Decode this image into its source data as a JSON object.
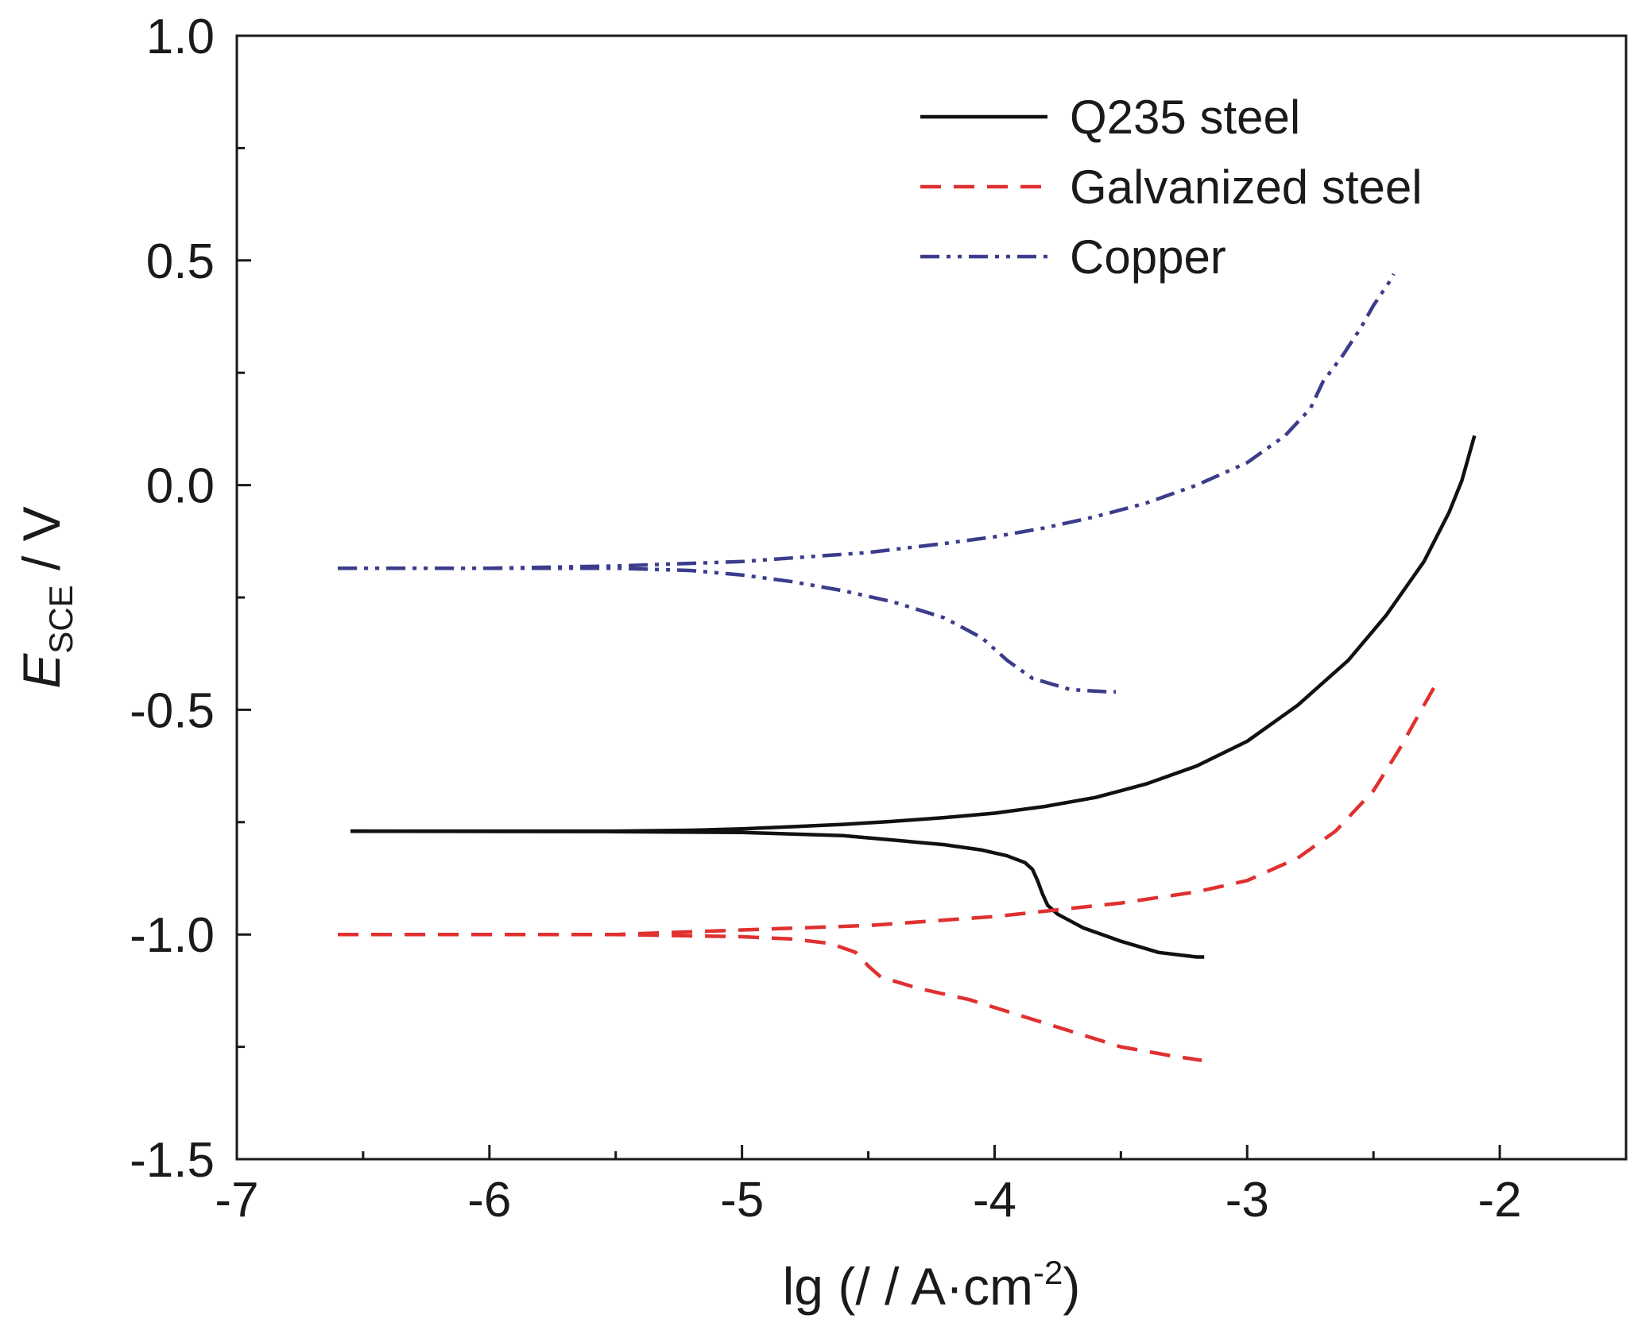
{
  "chart_data": {
    "type": "line",
    "xlabel": "lg (/ / A·cm-2)",
    "xlabel_parts": {
      "main": "lg (/ / A·cm",
      "sup": "-2",
      "close": ")"
    },
    "ylabel": "ESCE / V",
    "ylabel_parts": {
      "symbol": "E",
      "sub": "SCE",
      "unit": " / V"
    },
    "xlim": [
      -7,
      -1.5
    ],
    "ylim": [
      -1.5,
      1.0
    ],
    "x_ticks": [
      -7,
      -6,
      -5,
      -4,
      -3,
      -2
    ],
    "x_tick_labels": [
      "-7",
      "-6",
      "-5",
      "-4",
      "-3",
      "-2"
    ],
    "x_minor_ticks": [
      -6.5,
      -5.5,
      -4.5,
      -3.5,
      -2.5
    ],
    "y_ticks": [
      -1.5,
      -1.0,
      -0.5,
      0.0,
      0.5,
      1.0
    ],
    "y_tick_labels": [
      "-1.5",
      "-1.0",
      "-0.5",
      "0.0",
      "0.5",
      "1.0"
    ],
    "y_minor_ticks": [
      -1.25,
      -0.75,
      -0.25,
      0.25,
      0.75
    ],
    "grid": false,
    "legend_position": "top-right",
    "series": [
      {
        "name": "Q235 steel",
        "color": "#111111",
        "dash": "solid",
        "branches": [
          [
            [
              -6.55,
              -0.77
            ],
            [
              -6.0,
              -0.77
            ],
            [
              -5.5,
              -0.77
            ],
            [
              -5.2,
              -0.768
            ],
            [
              -5.0,
              -0.765
            ],
            [
              -4.8,
              -0.76
            ],
            [
              -4.6,
              -0.755
            ],
            [
              -4.4,
              -0.748
            ],
            [
              -4.2,
              -0.74
            ],
            [
              -4.0,
              -0.73
            ],
            [
              -3.8,
              -0.715
            ],
            [
              -3.6,
              -0.695
            ],
            [
              -3.4,
              -0.665
            ],
            [
              -3.2,
              -0.625
            ],
            [
              -3.0,
              -0.57
            ],
            [
              -2.8,
              -0.49
            ],
            [
              -2.6,
              -0.39
            ],
            [
              -2.45,
              -0.29
            ],
            [
              -2.3,
              -0.17
            ],
            [
              -2.2,
              -0.06
            ],
            [
              -2.15,
              0.01
            ],
            [
              -2.1,
              0.11
            ]
          ],
          [
            [
              -6.55,
              -0.77
            ],
            [
              -5.5,
              -0.771
            ],
            [
              -5.0,
              -0.773
            ],
            [
              -4.6,
              -0.78
            ],
            [
              -4.4,
              -0.79
            ],
            [
              -4.2,
              -0.8
            ],
            [
              -4.05,
              -0.812
            ],
            [
              -3.95,
              -0.825
            ],
            [
              -3.88,
              -0.84
            ],
            [
              -3.85,
              -0.855
            ],
            [
              -3.83,
              -0.88
            ],
            [
              -3.81,
              -0.91
            ],
            [
              -3.79,
              -0.935
            ],
            [
              -3.75,
              -0.955
            ],
            [
              -3.65,
              -0.985
            ],
            [
              -3.5,
              -1.015
            ],
            [
              -3.35,
              -1.04
            ],
            [
              -3.2,
              -1.05
            ],
            [
              -3.17,
              -1.05
            ]
          ]
        ]
      },
      {
        "name": "Galvanized steel",
        "color": "#e03030",
        "dash": "dashed",
        "branches": [
          [
            [
              -6.6,
              -1.0
            ],
            [
              -6.0,
              -1.0
            ],
            [
              -5.5,
              -1.0
            ],
            [
              -5.0,
              -0.99
            ],
            [
              -4.5,
              -0.98
            ],
            [
              -4.0,
              -0.96
            ],
            [
              -3.5,
              -0.93
            ],
            [
              -3.2,
              -0.905
            ],
            [
              -3.0,
              -0.88
            ],
            [
              -2.8,
              -0.83
            ],
            [
              -2.65,
              -0.77
            ],
            [
              -2.5,
              -0.68
            ],
            [
              -2.4,
              -0.59
            ],
            [
              -2.3,
              -0.49
            ],
            [
              -2.25,
              -0.44
            ]
          ],
          [
            [
              -6.6,
              -1.0
            ],
            [
              -5.5,
              -1.0
            ],
            [
              -5.0,
              -1.005
            ],
            [
              -4.8,
              -1.01
            ],
            [
              -4.65,
              -1.02
            ],
            [
              -4.55,
              -1.04
            ],
            [
              -4.5,
              -1.07
            ],
            [
              -4.45,
              -1.095
            ],
            [
              -4.3,
              -1.12
            ],
            [
              -4.1,
              -1.145
            ],
            [
              -3.9,
              -1.18
            ],
            [
              -3.7,
              -1.215
            ],
            [
              -3.5,
              -1.25
            ],
            [
              -3.3,
              -1.27
            ],
            [
              -3.18,
              -1.28
            ]
          ]
        ]
      },
      {
        "name": "Copper",
        "color": "#3c3c8c",
        "dash": "dash-dot-dot",
        "branches": [
          [
            [
              -6.6,
              -0.185
            ],
            [
              -6.0,
              -0.185
            ],
            [
              -5.5,
              -0.18
            ],
            [
              -5.0,
              -0.17
            ],
            [
              -4.5,
              -0.15
            ],
            [
              -4.2,
              -0.13
            ],
            [
              -4.0,
              -0.115
            ],
            [
              -3.8,
              -0.095
            ],
            [
              -3.6,
              -0.07
            ],
            [
              -3.4,
              -0.04
            ],
            [
              -3.2,
              0.0
            ],
            [
              -3.0,
              0.05
            ],
            [
              -2.85,
              0.11
            ],
            [
              -2.75,
              0.17
            ],
            [
              -2.7,
              0.23
            ],
            [
              -2.62,
              0.29
            ],
            [
              -2.55,
              0.35
            ],
            [
              -2.5,
              0.4
            ],
            [
              -2.44,
              0.45
            ],
            [
              -2.42,
              0.47
            ]
          ],
          [
            [
              -6.6,
              -0.185
            ],
            [
              -5.5,
              -0.185
            ],
            [
              -5.2,
              -0.19
            ],
            [
              -5.0,
              -0.2
            ],
            [
              -4.8,
              -0.215
            ],
            [
              -4.6,
              -0.235
            ],
            [
              -4.4,
              -0.26
            ],
            [
              -4.2,
              -0.295
            ],
            [
              -4.05,
              -0.34
            ],
            [
              -3.95,
              -0.39
            ],
            [
              -3.85,
              -0.43
            ],
            [
              -3.7,
              -0.455
            ],
            [
              -3.55,
              -0.46
            ],
            [
              -3.52,
              -0.46
            ]
          ]
        ]
      }
    ]
  }
}
